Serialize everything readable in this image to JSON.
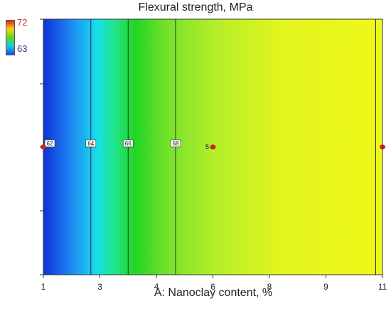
{
  "chart_data": {
    "type": "heatmap",
    "title": "Flexural strength, MPa",
    "xlabel": "A: Nanoclay content, %",
    "x_tick_labels": [
      "1",
      "3",
      "4",
      "6",
      "8",
      "9",
      "11"
    ],
    "xlim": [
      1,
      11
    ],
    "legend": {
      "max_label": "72",
      "min_label": "63",
      "max_color": "#e1261c",
      "min_color": "#1f4cd8"
    },
    "contours": [
      {
        "x": 2.4,
        "label": "64"
      },
      {
        "x": 3.5,
        "label": "66"
      },
      {
        "x": 4.9,
        "label": "68"
      },
      {
        "x": 10.8,
        "label": ""
      }
    ],
    "contour_label_62": "62",
    "design_points": [
      {
        "x": 1,
        "label": ""
      },
      {
        "x": 6,
        "label": "5"
      },
      {
        "x": 11,
        "label": ""
      }
    ],
    "colormap_stops": [
      {
        "x": 1.0,
        "color": "#0a33d6"
      },
      {
        "x": 1.6,
        "color": "#1b6fef"
      },
      {
        "x": 2.1,
        "color": "#1ba8f2"
      },
      {
        "x": 2.6,
        "color": "#18e0ea"
      },
      {
        "x": 3.1,
        "color": "#22e58a"
      },
      {
        "x": 3.7,
        "color": "#20d622"
      },
      {
        "x": 4.6,
        "color": "#72e12a"
      },
      {
        "x": 6.0,
        "color": "#b2ee29"
      },
      {
        "x": 8.0,
        "color": "#e2f51e"
      },
      {
        "x": 10.2,
        "color": "#ecf71a"
      },
      {
        "x": 11.0,
        "color": "#ecf71a"
      }
    ]
  }
}
